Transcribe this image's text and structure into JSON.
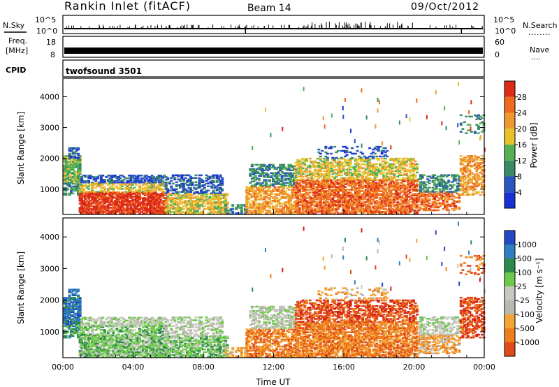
{
  "header": {
    "title": "Rankin Inlet (fitACF)",
    "beam": "Beam 14",
    "date": "09/Oct/2012"
  },
  "nsky_panel": {
    "left_label": "N.Sky",
    "right_label": "N.Search",
    "right_legend": "........",
    "ticks": [
      "10^5",
      "10^0"
    ]
  },
  "freq_panel": {
    "label_line1": "Freq.",
    "label_line2": "[MHz]",
    "left_ticks": [
      "18",
      "8"
    ],
    "right_ticks": [
      "60",
      "0"
    ],
    "right_label": "Nave",
    "right_legend": "...."
  },
  "cpid_panel": {
    "label": "CPID",
    "value": "twofsound 3501"
  },
  "colors": {
    "power": [
      "#1a2fd6",
      "#2a55c0",
      "#3a8a64",
      "#55b055",
      "#e8c22a",
      "#f09830",
      "#ee6a1e",
      "#dd2b18"
    ],
    "velocity": [
      "#2447c4",
      "#2f7ec4",
      "#2e8a4c",
      "#6ec84a",
      "#c8c8c0",
      "#b9b9b0",
      "#f3a534",
      "#ee7d1c",
      "#e04a18",
      "#d61a14"
    ]
  },
  "chart_data": [
    {
      "type": "heatmap",
      "name": "power",
      "xlabel": "",
      "ylabel": "Slant Range [km]",
      "x_ticks": [
        "00:00",
        "04:00",
        "08:00",
        "12:00",
        "16:00",
        "20:00",
        "00:00"
      ],
      "xlim_hours": [
        0,
        24
      ],
      "ylim": [
        180,
        4600
      ],
      "y_ticks": [
        1000,
        2000,
        3000,
        4000
      ],
      "colorbar": {
        "label": "Power [dB]",
        "range": [
          0,
          32
        ],
        "ticks": [
          4,
          8,
          12,
          16,
          20,
          24,
          28
        ]
      }
    },
    {
      "type": "heatmap",
      "name": "velocity",
      "xlabel": "Time UT",
      "ylabel": "Slant Range [km]",
      "x_ticks": [
        "00:00",
        "04:00",
        "08:00",
        "12:00",
        "16:00",
        "20:00",
        "00:00"
      ],
      "xlim_hours": [
        0,
        24
      ],
      "ylim": [
        180,
        4600
      ],
      "y_ticks": [
        1000,
        2000,
        3000,
        4000
      ],
      "colorbar": {
        "label": "Velocity [m s⁻¹]",
        "ticks": [
          "1000",
          "500",
          "100",
          "25",
          "-25",
          "-100",
          "-500",
          "-1000"
        ]
      }
    }
  ]
}
